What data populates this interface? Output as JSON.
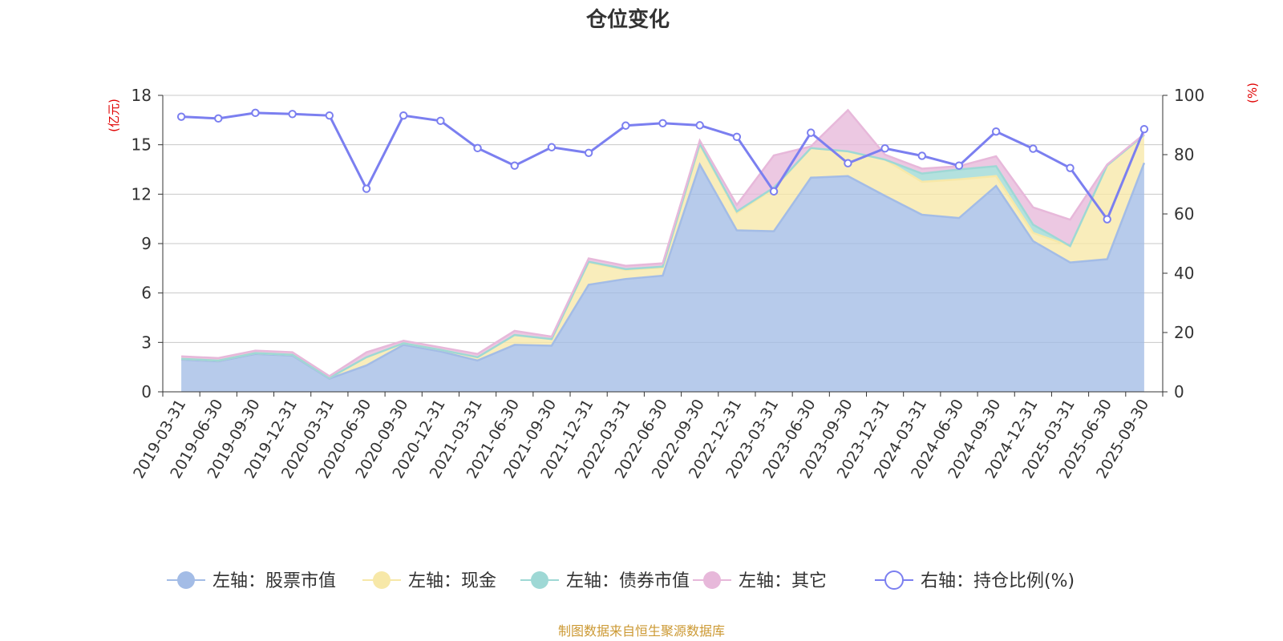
{
  "chart_data": {
    "type": "area",
    "title": "仓位变化",
    "left_unit": "(亿元)",
    "right_unit": "(%)",
    "ylim_left": [
      0,
      18
    ],
    "yticks_left": [
      0,
      3,
      6,
      9,
      12,
      15,
      18
    ],
    "ylim_right": [
      0,
      100
    ],
    "yticks_right": [
      0,
      20,
      40,
      60,
      80,
      100
    ],
    "grid": true,
    "legend_position": "bottom",
    "x": [
      "2019-03-31",
      "2019-06-30",
      "2019-09-30",
      "2019-12-31",
      "2020-03-31",
      "2020-06-30",
      "2020-09-30",
      "2020-12-31",
      "2021-03-31",
      "2021-06-30",
      "2021-09-30",
      "2021-12-31",
      "2022-03-31",
      "2022-06-30",
      "2022-09-30",
      "2022-12-31",
      "2023-03-31",
      "2023-06-30",
      "2023-09-30",
      "2023-12-31",
      "2024-03-31",
      "2024-06-30",
      "2024-09-30",
      "2024-12-31",
      "2025-03-31",
      "2025-06-30",
      "2025-09-30"
    ],
    "series": [
      {
        "name": "左轴：股票市值",
        "axis": "left",
        "stack": true,
        "color": "#a3bce6",
        "values": [
          1.95,
          1.85,
          2.3,
          2.2,
          0.8,
          1.6,
          2.85,
          2.45,
          1.9,
          2.85,
          2.8,
          6.5,
          6.85,
          7.05,
          13.8,
          9.8,
          9.75,
          13.0,
          13.1,
          11.9,
          10.75,
          10.55,
          12.5,
          9.15,
          7.85,
          8.05,
          13.9
        ]
      },
      {
        "name": "左轴：现金",
        "axis": "left",
        "stack": true,
        "color": "#f7e8a8",
        "values": [
          0.05,
          0.05,
          0.05,
          0.05,
          0.05,
          0.5,
          0.1,
          0.1,
          0.2,
          0.6,
          0.4,
          1.35,
          0.55,
          0.5,
          1.2,
          1.05,
          2.6,
          1.8,
          1.5,
          2.2,
          2.0,
          2.35,
          0.6,
          0.5,
          1.0,
          5.7,
          1.7
        ]
      },
      {
        "name": "左轴：债券市值",
        "axis": "left",
        "stack": true,
        "color": "#9ed8d5",
        "values": [
          0,
          0,
          0,
          0,
          0,
          0,
          0,
          0,
          0,
          0,
          0,
          0.05,
          0.05,
          0.05,
          0.05,
          0.1,
          0.05,
          0,
          0,
          0,
          0.5,
          0.6,
          0.6,
          0.5,
          0,
          0,
          0
        ]
      },
      {
        "name": "左轴：其它",
        "axis": "left",
        "stack": true,
        "color": "#e7b8da",
        "values": [
          0.15,
          0.15,
          0.15,
          0.15,
          0.1,
          0.3,
          0.15,
          0.15,
          0.2,
          0.25,
          0.15,
          0.2,
          0.2,
          0.2,
          0.2,
          0.4,
          1.95,
          0.1,
          2.5,
          0.3,
          0.3,
          0.2,
          0.6,
          1.05,
          1.6,
          0.05,
          0.05
        ]
      },
      {
        "name": "右轴：持仓比例(%)",
        "axis": "right",
        "type": "line",
        "color": "#7b7ff0",
        "values": [
          92.8,
          92.2,
          94.1,
          93.7,
          93.2,
          68.5,
          93.2,
          91.4,
          82.2,
          76.3,
          82.5,
          80.6,
          89.8,
          90.6,
          89.9,
          86.0,
          67.6,
          87.4,
          77.1,
          82.1,
          79.6,
          76.3,
          87.8,
          82.0,
          75.5,
          58.2,
          88.6
        ]
      }
    ]
  },
  "source_note": "制图数据来自恒生聚源数据库",
  "colors": {
    "title": "#333333",
    "axis_unit": "#e00000",
    "grid": "#c8c8c8",
    "axis": "#333333",
    "source": "#cc9933"
  }
}
